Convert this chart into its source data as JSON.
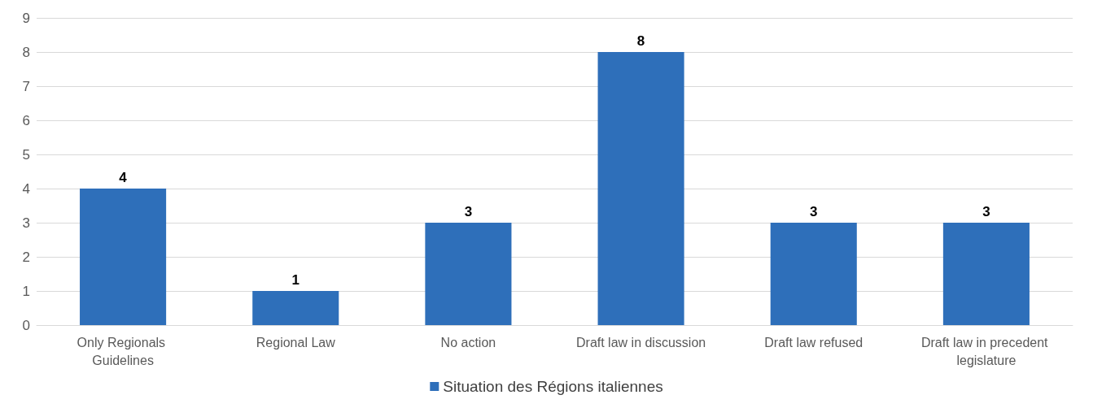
{
  "chart_data": {
    "type": "bar",
    "categories": [
      "Only Regionals Guidelines",
      "Regional Law",
      "No action",
      "Draft law in discussion",
      "Draft law refused",
      "Draft law in precedent legislature"
    ],
    "series": [
      {
        "name": "Situation des Régions italiennes",
        "color": "#2e6fba",
        "values": [
          4,
          1,
          3,
          8,
          3,
          3
        ]
      }
    ],
    "ylim": [
      0,
      9
    ],
    "yticks": [
      0,
      1,
      2,
      3,
      4,
      5,
      6,
      7,
      8,
      9
    ],
    "grid": "y",
    "legend": "bottom",
    "data_labels": true
  }
}
